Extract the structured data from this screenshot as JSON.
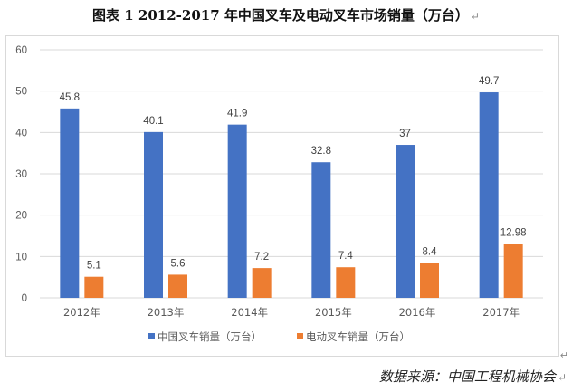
{
  "header": {
    "title": "图表 1 2012-2017 年中国叉车及电动叉车市场销量（万台）",
    "mark": "↵"
  },
  "source": {
    "text": "数据来源：中国工程机械协会",
    "mark": "↵"
  },
  "colors": {
    "series1": "#4472C4",
    "series2": "#ED7D31",
    "grid": "#d9d9d9",
    "axis_text": "#595959"
  },
  "chart_data": {
    "type": "bar",
    "title": "2012-2017 年中国叉车及电动叉车市场销量（万台）",
    "categories": [
      "2012年",
      "2013年",
      "2014年",
      "2015年",
      "2016年",
      "2017年"
    ],
    "series": [
      {
        "name": "中国叉车销量（万台）",
        "values": [
          45.8,
          40.1,
          41.9,
          32.8,
          37,
          49.7
        ],
        "labels": [
          "45.8",
          "40.1",
          "41.9",
          "32.8",
          "37",
          "49.7"
        ]
      },
      {
        "name": "电动叉车销量（万台）",
        "values": [
          5.1,
          5.6,
          7.2,
          7.4,
          8.4,
          12.98
        ],
        "labels": [
          "5.1",
          "5.6",
          "7.2",
          "7.4",
          "8.4",
          "12.98"
        ]
      }
    ],
    "ylim": [
      0,
      60
    ],
    "yticks": [
      "0",
      "10",
      "20",
      "30",
      "40",
      "50",
      "60"
    ],
    "grid": true,
    "legend_position": "bottom"
  }
}
